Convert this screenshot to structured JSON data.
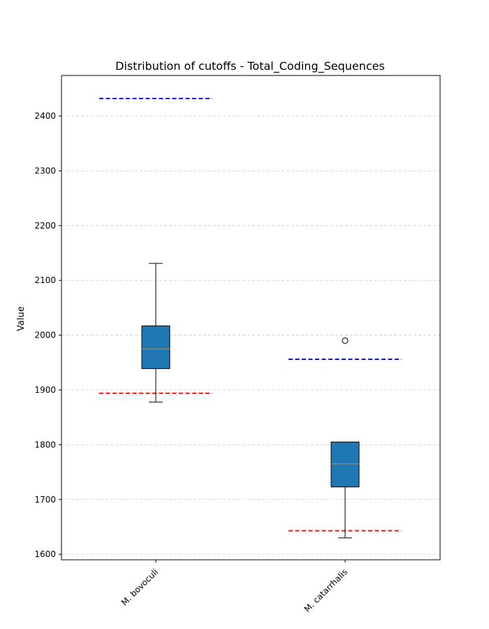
{
  "chart_data": {
    "type": "box",
    "title": "Distribution of cutoffs - Total_Coding_Sequences",
    "xlabel": "",
    "ylabel": "Value",
    "ylim": [
      1590,
      2474
    ],
    "yticks": [
      1600,
      1700,
      1800,
      1900,
      2000,
      2100,
      2200,
      2300,
      2400
    ],
    "grid": "y-dashed",
    "categories": [
      "M. bovoculi",
      "M. catarrhalis"
    ],
    "boxes": [
      {
        "category": "M. bovoculi",
        "whisker_low": 1878,
        "q1": 1939,
        "median": 1975,
        "q3": 2017,
        "whisker_high": 2131,
        "outliers": []
      },
      {
        "category": "M. catarrhalis",
        "whisker_low": 1630,
        "q1": 1723,
        "median": 1765,
        "q3": 1805,
        "whisker_high": 1805,
        "outliers": [
          1990
        ]
      }
    ],
    "reference_lines": [
      {
        "category": "M. bovoculi",
        "color": "#0000ff",
        "value": 2432
      },
      {
        "category": "M. bovoculi",
        "color": "#ff0000",
        "value": 1894
      },
      {
        "category": "M. catarrhalis",
        "color": "#0000ff",
        "value": 1956
      },
      {
        "category": "M. catarrhalis",
        "color": "#ff0000",
        "value": 1643
      }
    ],
    "colors": {
      "box_fill": "#1f77b4",
      "median": "#ff7f0e",
      "grid": "#cccccc"
    }
  }
}
